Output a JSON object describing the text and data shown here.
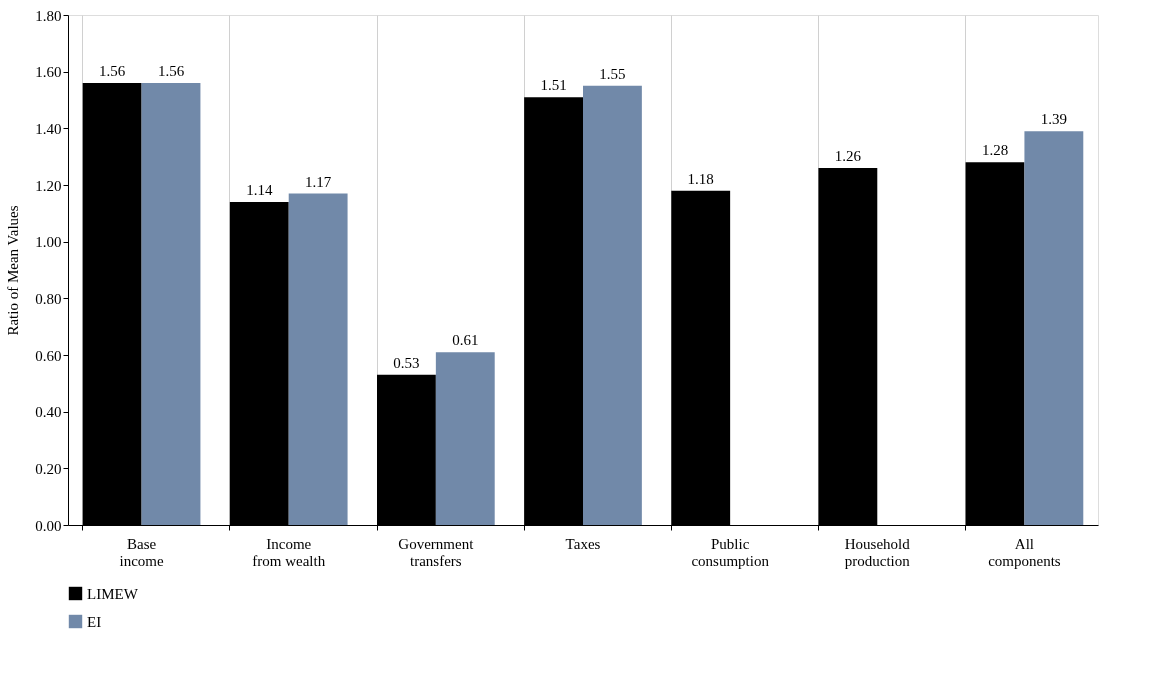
{
  "chart_data": {
    "type": "bar",
    "ylabel": "Ratio of Mean Values",
    "categories": [
      "Base income",
      "Income from wealth",
      "Government transfers",
      "Taxes",
      "Public consumption",
      "Household production",
      "All components"
    ],
    "series": [
      {
        "name": "LIMEW",
        "color": "#000000",
        "values": [
          1.56,
          1.14,
          0.53,
          1.51,
          1.18,
          1.26,
          1.28
        ]
      },
      {
        "name": "EI",
        "color": "#7189a9",
        "values": [
          1.56,
          1.17,
          0.61,
          1.55,
          null,
          null,
          1.39
        ]
      }
    ],
    "ylim": [
      0,
      1.8
    ],
    "yticks": [
      {
        "value": 0,
        "label": "0.00"
      },
      {
        "value": 0.2,
        "label": "0.20"
      },
      {
        "value": 0.4,
        "label": "0.40"
      },
      {
        "value": 0.6,
        "label": "0.60"
      },
      {
        "value": 0.8,
        "label": "0.80"
      },
      {
        "value": 1.0,
        "label": "1.00"
      },
      {
        "value": 1.2,
        "label": "1.20"
      },
      {
        "value": 1.4,
        "label": "1.40"
      },
      {
        "value": 1.6,
        "label": "1.60"
      },
      {
        "value": 1.8,
        "label": "1.80"
      }
    ],
    "data_labels": true,
    "grid": "x",
    "legend": "bottom left"
  }
}
